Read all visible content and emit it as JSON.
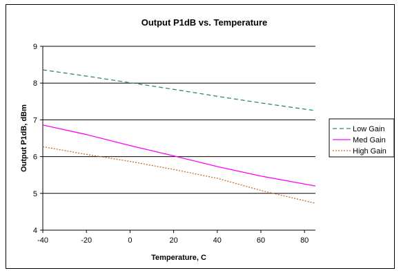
{
  "chart_data": {
    "type": "line",
    "title": "Output P1dB vs. Temperature",
    "xlabel": "Temperature, C",
    "ylabel": "Output P1dB, dBm",
    "xlim": [
      -40,
      85
    ],
    "ylim": [
      4,
      9
    ],
    "xticks": [
      "-40",
      "-20",
      "0",
      "20",
      "40",
      "60",
      "80"
    ],
    "yticks": [
      "4",
      "5",
      "6",
      "7",
      "8",
      "9"
    ],
    "grid": true,
    "legend_position": "right",
    "x": [
      -40,
      -20,
      0,
      20,
      40,
      60,
      85
    ],
    "series": [
      {
        "name": "Low Gain",
        "color": "#2e8b57",
        "style": "dashed",
        "values": [
          8.36,
          8.19,
          8.01,
          7.83,
          7.64,
          7.46,
          7.25
        ]
      },
      {
        "name": "Med Gain",
        "color": "#ff00ff",
        "style": "solid",
        "values": [
          6.86,
          6.6,
          6.3,
          6.02,
          5.73,
          5.47,
          5.2
        ]
      },
      {
        "name": "High Gain",
        "color": "#d2691e",
        "style": "dotted",
        "values": [
          6.27,
          6.06,
          5.87,
          5.65,
          5.41,
          5.08,
          4.73
        ]
      }
    ]
  }
}
